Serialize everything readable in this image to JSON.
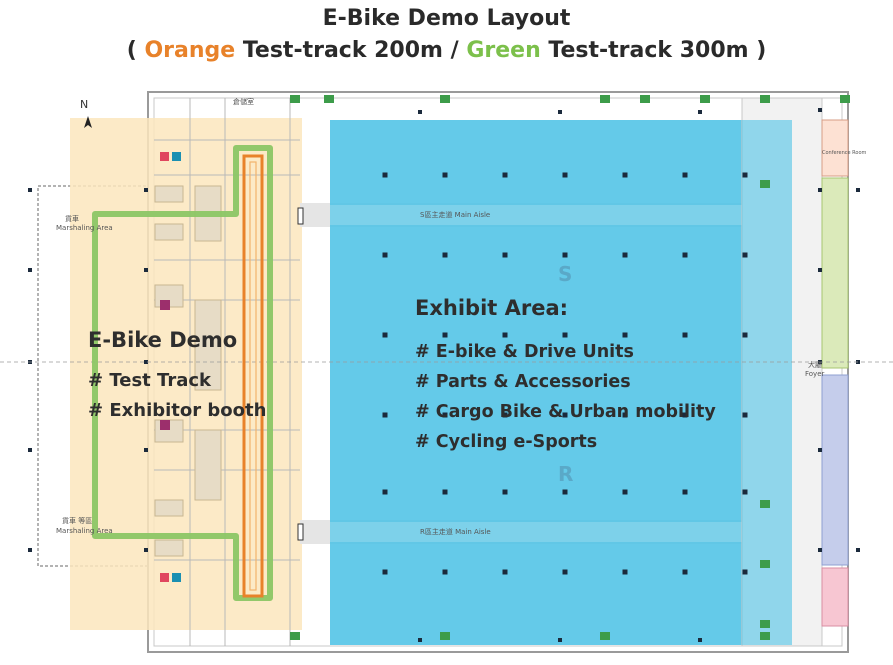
{
  "header": {
    "title": "E-Bike Demo Layout",
    "sub_open": "( ",
    "sub_orange": "Orange",
    "sub_mid": " Test-track 200m  / ",
    "sub_green": "Green",
    "sub_end": " Test-track 300m )"
  },
  "colors": {
    "orange": "#e8822a",
    "green": "#7cc04b",
    "exhibit_blue": "#4ec3e6",
    "demo_zone": "#fbe6bd"
  },
  "compass": {
    "label": "N"
  },
  "demo_area": {
    "title": "E-Bike Demo",
    "items": [
      "# Test Track",
      "# Exhibitor booth"
    ]
  },
  "exhibit_area": {
    "title": "Exhibit Area:",
    "items": [
      "# E-bike & Drive Units",
      "# Parts & Accessories",
      "# Cargo Bike & Urban mobility",
      "# Cycling e-Sports"
    ]
  },
  "map_labels": {
    "aisle_top": "S區主走道 Main Aisle",
    "aisle_bottom": "R區主走道 Main Aisle",
    "marshaling_top": "Marshaling Area",
    "marshaling_top_cn": "貨車",
    "marshaling_bottom": "Marshaling Area",
    "marshaling_bottom_cn": "貨車 等區",
    "hall_s": "S",
    "hall_r": "R",
    "foyer_cn": "大廳",
    "foyer": "Foyer",
    "storage": "倉儲室",
    "conference": "Conference Room"
  }
}
